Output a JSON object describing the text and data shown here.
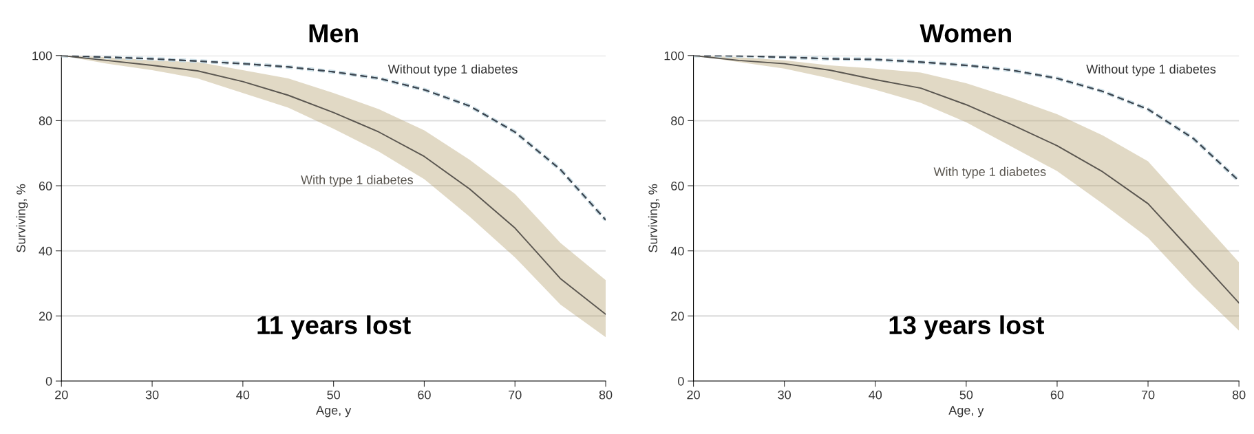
{
  "chart_data": [
    {
      "type": "line",
      "title": "Men",
      "xlabel": "Age, y",
      "ylabel": "Surviving, %",
      "x": [
        20,
        25,
        30,
        35,
        40,
        45,
        50,
        55,
        60,
        65,
        70,
        75,
        80
      ],
      "xlim": [
        20,
        80
      ],
      "xticks": [
        20,
        30,
        40,
        50,
        60,
        70,
        80
      ],
      "ylim": [
        0,
        100
      ],
      "yticks": [
        0,
        20,
        40,
        60,
        80,
        100
      ],
      "grid": "y",
      "legend": false,
      "series": [
        {
          "name": "Without type 1 diabetes",
          "color": "#3c4650",
          "line_style": "dashed",
          "values": [
            100,
            99.5,
            99,
            98.3,
            97.5,
            96.5,
            95,
            93,
            89.5,
            84.5,
            76.5,
            65,
            49.5
          ]
        },
        {
          "name": "With type 1 diabetes",
          "color": "#5a5650",
          "values": [
            100,
            98.5,
            97,
            95.3,
            92,
            87.8,
            82.5,
            76.5,
            69,
            59,
            47,
            31.5,
            20.5
          ],
          "lower": [
            100,
            97.5,
            95.5,
            93,
            88.5,
            84,
            77.5,
            70.5,
            62,
            50.5,
            38,
            23.5,
            13.5
          ],
          "upper": [
            100,
            99.5,
            98.5,
            98,
            95.5,
            93,
            88.5,
            83.5,
            77,
            68,
            57.5,
            42.5,
            31
          ]
        }
      ],
      "annotations": [
        "11 years lost"
      ]
    },
    {
      "type": "line",
      "title": "Women",
      "xlabel": "Age, y",
      "ylabel": "Surviving, %",
      "x": [
        20,
        25,
        30,
        35,
        40,
        45,
        50,
        55,
        60,
        65,
        70,
        75,
        80
      ],
      "xlim": [
        20,
        80
      ],
      "xticks": [
        20,
        30,
        40,
        50,
        60,
        70,
        80
      ],
      "ylim": [
        0,
        100
      ],
      "yticks": [
        0,
        20,
        40,
        60,
        80,
        100
      ],
      "grid": "y",
      "legend": false,
      "series": [
        {
          "name": "Without type 1 diabetes",
          "color": "#3c4650",
          "line_style": "dashed",
          "values": [
            100,
            99.9,
            99.5,
            99,
            98.8,
            98,
            97,
            95.5,
            93,
            89,
            83.5,
            74.5,
            61.5
          ]
        },
        {
          "name": "With type 1 diabetes",
          "color": "#5a5650",
          "values": [
            100,
            98.5,
            97.5,
            95.5,
            92.6,
            90,
            84.9,
            78.8,
            72.3,
            64.3,
            54.5,
            39.3,
            24
          ],
          "lower": [
            100,
            98,
            96,
            93,
            89.5,
            85.5,
            79.5,
            72,
            64.5,
            54.5,
            44,
            29,
            15.5
          ],
          "upper": [
            100,
            99.5,
            98.5,
            97,
            96,
            94.8,
            91.5,
            87,
            82,
            75.5,
            67.5,
            52,
            36.5
          ]
        }
      ],
      "annotations": [
        "13 years lost"
      ]
    }
  ]
}
